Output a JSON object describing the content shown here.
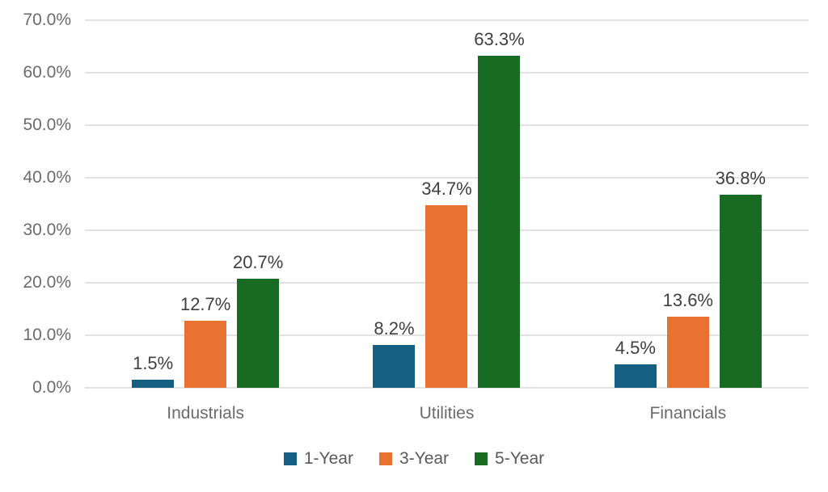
{
  "chart_data": {
    "type": "bar",
    "title": "",
    "categories": [
      "Industrials",
      "Utilities",
      "Financials"
    ],
    "series": [
      {
        "name": "1-Year",
        "color": "#156082",
        "values": [
          1.5,
          8.2,
          4.5
        ],
        "labels": [
          "1.5%",
          "8.2%",
          "4.5%"
        ]
      },
      {
        "name": "3-Year",
        "color": "#E97132",
        "values": [
          12.7,
          34.7,
          13.6
        ],
        "labels": [
          "12.7%",
          "34.7%",
          "13.6%"
        ]
      },
      {
        "name": "5-Year",
        "color": "#196B24",
        "values": [
          20.7,
          63.3,
          36.8
        ],
        "labels": [
          "20.7%",
          "63.3%",
          "36.8%"
        ]
      }
    ],
    "y_axis": {
      "min": 0,
      "max": 70,
      "step": 10,
      "tick_labels": [
        "0.0%",
        "10.0%",
        "20.0%",
        "30.0%",
        "40.0%",
        "50.0%",
        "60.0%",
        "70.0%"
      ]
    },
    "xlabel": "",
    "ylabel": "",
    "grid": true,
    "legend_position": "bottom",
    "colors": {
      "background": "#ffffff",
      "gridline": "#e2e2e2",
      "axis_text": "#6b6b6b",
      "data_label_text": "#404040",
      "legend_text": "#595959"
    }
  }
}
